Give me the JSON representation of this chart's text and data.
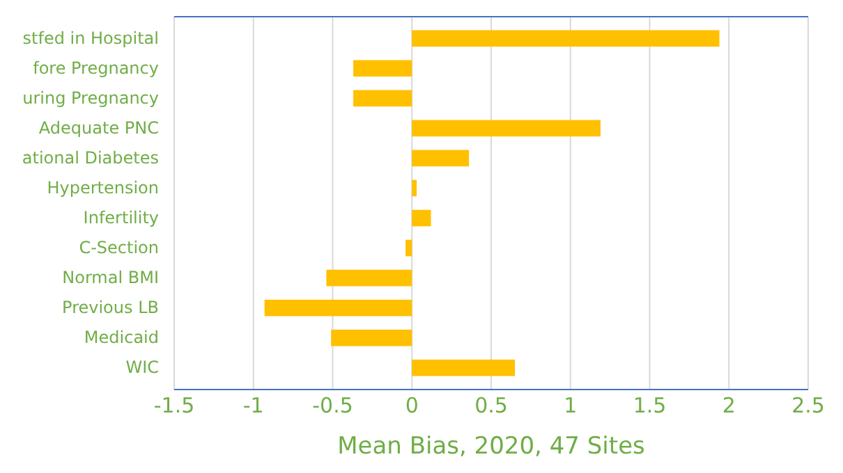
{
  "chart_data": {
    "type": "bar",
    "orientation": "horizontal",
    "xlabel": "Mean Bias, 2020, 47 Sites",
    "categories": [
      "stfed in Hospital",
      "fore Pregnancy",
      "uring Pregnancy",
      "Adequate PNC",
      "ational Diabetes",
      "Hypertension",
      "Infertility",
      "C-Section",
      "Normal BMI",
      "Previous LB",
      "Medicaid",
      "WIC"
    ],
    "values": [
      1.94,
      -0.37,
      -0.37,
      1.19,
      0.36,
      0.03,
      0.12,
      -0.04,
      -0.54,
      -0.93,
      -0.51,
      0.65
    ],
    "color": "#ffc000",
    "xlim": [
      -1.5,
      2.5
    ],
    "xticks": [
      -1.5,
      -1,
      -0.5,
      0,
      0.5,
      1,
      1.5,
      2,
      2.5
    ],
    "grid": "x"
  }
}
